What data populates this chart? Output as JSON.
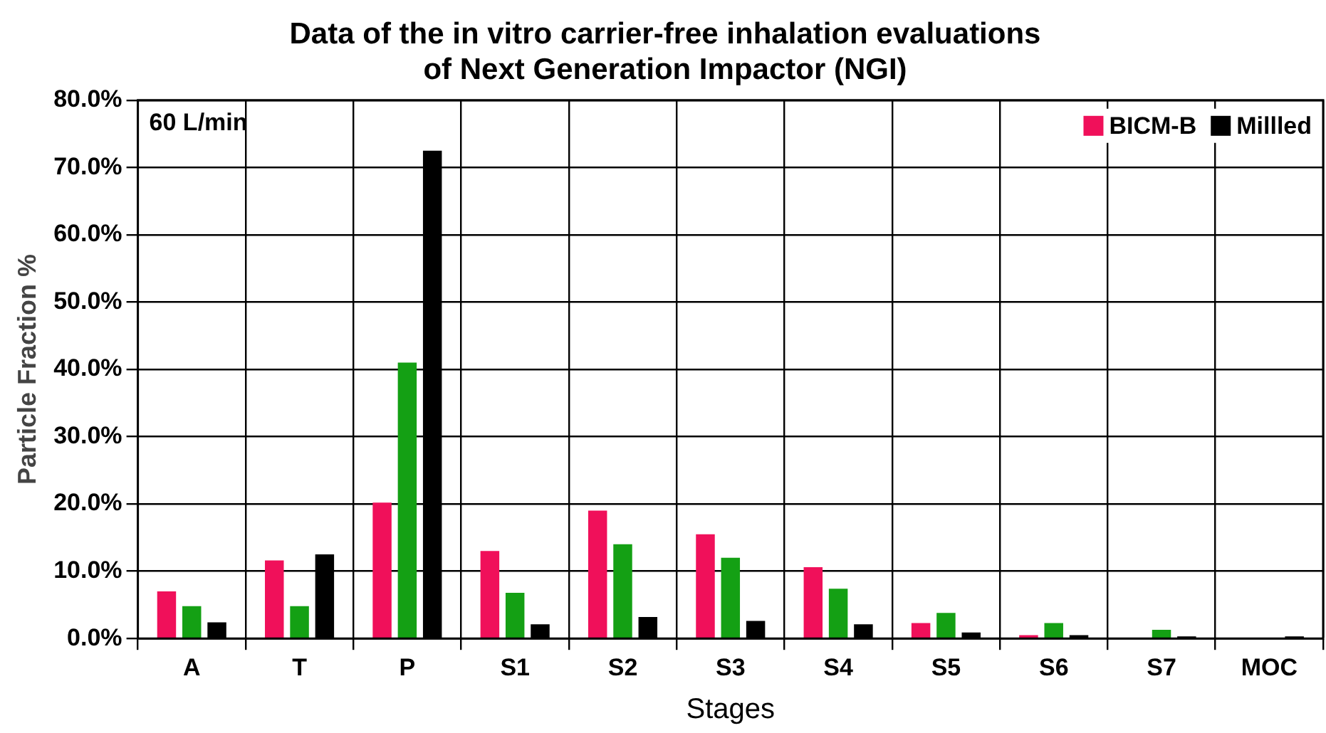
{
  "chart_data": {
    "type": "bar",
    "title": [
      "Data of the in vitro carrier-free inhalation evaluations",
      "of Next Generation Impactor (NGI)"
    ],
    "xlabel": "Stages",
    "ylabel": "Particle Fraction %",
    "categories": [
      "A",
      "T",
      "P",
      "S1",
      "S2",
      "S3",
      "S4",
      "S5",
      "S6",
      "S7",
      "MOC"
    ],
    "series": [
      {
        "name": "BICM-B",
        "color": "#f0105a",
        "values": [
          7.0,
          11.6,
          20.2,
          13.0,
          19.0,
          15.5,
          10.6,
          2.3,
          0.5,
          0,
          0
        ]
      },
      {
        "color": "#14a014",
        "values": [
          4.8,
          4.8,
          41.0,
          6.8,
          14.0,
          12.0,
          7.4,
          3.8,
          2.3,
          1.3,
          0
        ]
      },
      {
        "name": "Millled",
        "color": "#000000",
        "values": [
          2.4,
          12.5,
          72.5,
          2.1,
          3.2,
          2.6,
          2.1,
          0.9,
          0.5,
          0.3,
          0.3
        ]
      }
    ],
    "ylim": [
      0,
      80
    ],
    "yticks": [
      {
        "value": 0,
        "label": "0.0%"
      },
      {
        "value": 10,
        "label": "10.0%"
      },
      {
        "value": 20,
        "label": "20.0%"
      },
      {
        "value": 30,
        "label": "30.0%"
      },
      {
        "value": 40,
        "label": "40.0%"
      },
      {
        "value": 50,
        "label": "50.0%"
      },
      {
        "value": 60,
        "label": "60.0%"
      },
      {
        "value": 70,
        "label": "70.0%"
      },
      {
        "value": 80,
        "label": "80.0%"
      }
    ],
    "grid": true,
    "legend": "top right",
    "annotations": [
      "60 L/min"
    ]
  }
}
